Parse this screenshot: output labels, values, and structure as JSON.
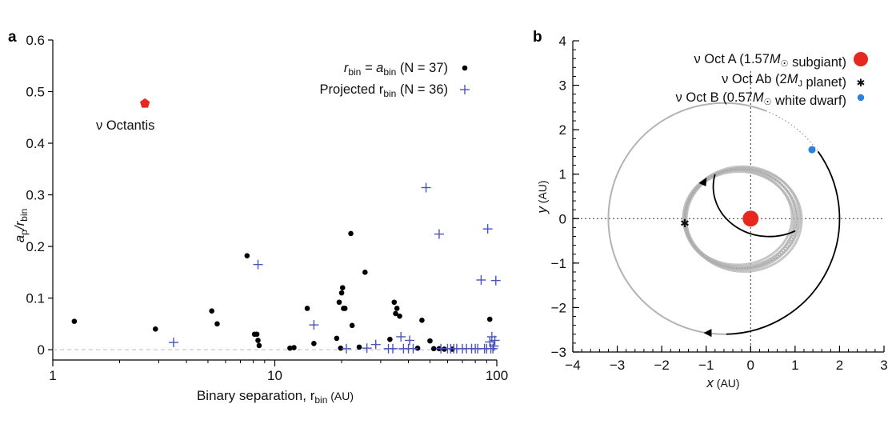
{
  "panel_a": {
    "label": "a",
    "legend": {
      "bound_prefix": "r",
      "bound_sub1": "bin",
      "bound_eq": " = a",
      "bound_sub2": "bin",
      "bound_n": " (N = 37)",
      "proj_prefix": "Projected r",
      "proj_sub": "bin",
      "proj_n": " (N = 36)"
    },
    "annotation": "ν Octantis",
    "xlabel_main": "Binary separation, r",
    "xlabel_sub": "bin",
    "xlabel_unit": " (AU)",
    "ylabel_a": "a",
    "ylabel_p": "p",
    "ylabel_slash": "/r",
    "ylabel_bin": "bin"
  },
  "panel_b": {
    "label": "b",
    "legend": [
      "ν Oct A (1.57M☉ subgiant)",
      "ν Oct Ab (2MJ planet)",
      "ν Oct B (0.57M☉ white dwarf)"
    ],
    "xlabel": "x",
    "xunit": " (AU)",
    "ylabel": "y",
    "yunit": " (AU)"
  },
  "colors": {
    "star": "#e8281e",
    "planet": "#1e8a1e",
    "white_dwarf": "#2a82e0",
    "cross": "#4a55b8",
    "grey_orbit": "#b3b3b3"
  },
  "chart_data": [
    {
      "type": "scatter",
      "title": "",
      "xlabel": "Binary separation, r_bin (AU)",
      "ylabel": "a_p/r_bin",
      "xscale": "log",
      "xlim": [
        1,
        100
      ],
      "ylim": [
        -0.02,
        0.6
      ],
      "xticks": [
        1,
        10,
        100
      ],
      "yticks": [
        0,
        0.1,
        0.2,
        0.3,
        0.4,
        0.5,
        0.6
      ],
      "x_tick_labels": [
        "1",
        "10",
        "100"
      ],
      "y_tick_labels": [
        "0",
        "0.1",
        "0.2",
        "0.3",
        "0.4",
        "0.5",
        "0.6"
      ],
      "reference_line": 0,
      "series": [
        {
          "name": "r_bin = a_bin (N = 37)",
          "marker": "dot",
          "color": "#000000",
          "points": [
            [
              1.25,
              0.055
            ],
            [
              2.9,
              0.04
            ],
            [
              5.2,
              0.075
            ],
            [
              5.5,
              0.05
            ],
            [
              7.5,
              0.182
            ],
            [
              8.1,
              0.03
            ],
            [
              8.3,
              0.03
            ],
            [
              8.4,
              0.018
            ],
            [
              8.5,
              0.008
            ],
            [
              11.7,
              0.003
            ],
            [
              12.2,
              0.004
            ],
            [
              14,
              0.08
            ],
            [
              15,
              0.012
            ],
            [
              19,
              0.022
            ],
            [
              19.5,
              0.092
            ],
            [
              19.8,
              0.003
            ],
            [
              20,
              0.11
            ],
            [
              20.2,
              0.12
            ],
            [
              20.4,
              0.08
            ],
            [
              20.7,
              0.08
            ],
            [
              22,
              0.225
            ],
            [
              22.3,
              0.047
            ],
            [
              24,
              0.005
            ],
            [
              25.5,
              0.15
            ],
            [
              33,
              0.02
            ],
            [
              34.5,
              0.092
            ],
            [
              35,
              0.07
            ],
            [
              35.5,
              0.08
            ],
            [
              36.5,
              0.065
            ],
            [
              44,
              0.003
            ],
            [
              46,
              0.057
            ],
            [
              50,
              0.017
            ],
            [
              52,
              0.002
            ],
            [
              55,
              0.002
            ],
            [
              58,
              0.001
            ],
            [
              63,
              0.001
            ],
            [
              93,
              0.059
            ]
          ]
        },
        {
          "name": "Projected r_bin (N = 36)",
          "marker": "plus",
          "color": "#4a55b8",
          "points": [
            [
              3.5,
              0.014
            ],
            [
              8.4,
              0.165
            ],
            [
              15,
              0.048
            ],
            [
              21,
              0.002
            ],
            [
              26,
              0.003
            ],
            [
              28.5,
              0.01
            ],
            [
              32.5,
              0.002
            ],
            [
              34,
              0.002
            ],
            [
              37,
              0.025
            ],
            [
              38,
              0.002
            ],
            [
              40,
              0.002
            ],
            [
              40.5,
              0.018
            ],
            [
              42,
              0.002
            ],
            [
              48,
              0.314
            ],
            [
              55,
              0.224
            ],
            [
              56,
              0.002
            ],
            [
              60,
              0.002
            ],
            [
              62,
              0.002
            ],
            [
              64,
              0.002
            ],
            [
              66,
              0.002
            ],
            [
              70,
              0.002
            ],
            [
              73,
              0.002
            ],
            [
              77,
              0.002
            ],
            [
              80,
              0.002
            ],
            [
              82,
              0.002
            ],
            [
              85,
              0.135
            ],
            [
              88,
              0.002
            ],
            [
              90,
              0.002
            ],
            [
              91,
              0.234
            ],
            [
              93,
              0.015
            ],
            [
              94,
              0.002
            ],
            [
              95,
              0.025
            ],
            [
              96,
              0.002
            ],
            [
              97,
              0.007
            ],
            [
              98,
              0.018
            ],
            [
              99,
              0.134
            ]
          ]
        },
        {
          "name": "ν Octantis",
          "marker": "pentagon",
          "color": "#e8281e",
          "points": [
            [
              2.6,
              0.477
            ]
          ]
        }
      ]
    },
    {
      "type": "line",
      "title": "",
      "xlabel": "x (AU)",
      "ylabel": "y (AU)",
      "xlim": [
        -4,
        3
      ],
      "ylim": [
        -3,
        4
      ],
      "xticks": [
        -4,
        -3,
        -2,
        -1,
        0,
        1,
        2,
        3
      ],
      "yticks": [
        -3,
        -2,
        -1,
        0,
        1,
        2,
        3,
        4
      ],
      "x_tick_labels": [
        "−4",
        "−3",
        "−2",
        "−1",
        "0",
        "1",
        "2",
        "3"
      ],
      "y_tick_labels": [
        "−3",
        "−2",
        "−1",
        "0",
        "1",
        "2",
        "3",
        "4"
      ],
      "crosshair": [
        0,
        0
      ],
      "binary_orbit": {
        "center": [
          -0.6,
          0.0
        ],
        "radius": 2.6,
        "color": "#b3b3b3"
      },
      "planet_orbit": {
        "center": [
          -0.22,
          0.0
        ],
        "rx": 1.26,
        "ry": 1.12,
        "color": "#b3b3b3"
      },
      "objects": [
        {
          "name": "ν Oct A (1.57M☉ subgiant)",
          "x": 0.0,
          "y": 0.0,
          "color": "#e8281e",
          "marker": "circle"
        },
        {
          "name": "ν Oct Ab (2MJ planet)",
          "x": -1.48,
          "y": -0.1,
          "color": "#1e8a1e",
          "marker": "star"
        },
        {
          "name": "ν Oct B (0.57M☉ white dwarf)",
          "x": 1.38,
          "y": 1.55,
          "color": "#2a82e0",
          "marker": "circle"
        }
      ]
    }
  ]
}
